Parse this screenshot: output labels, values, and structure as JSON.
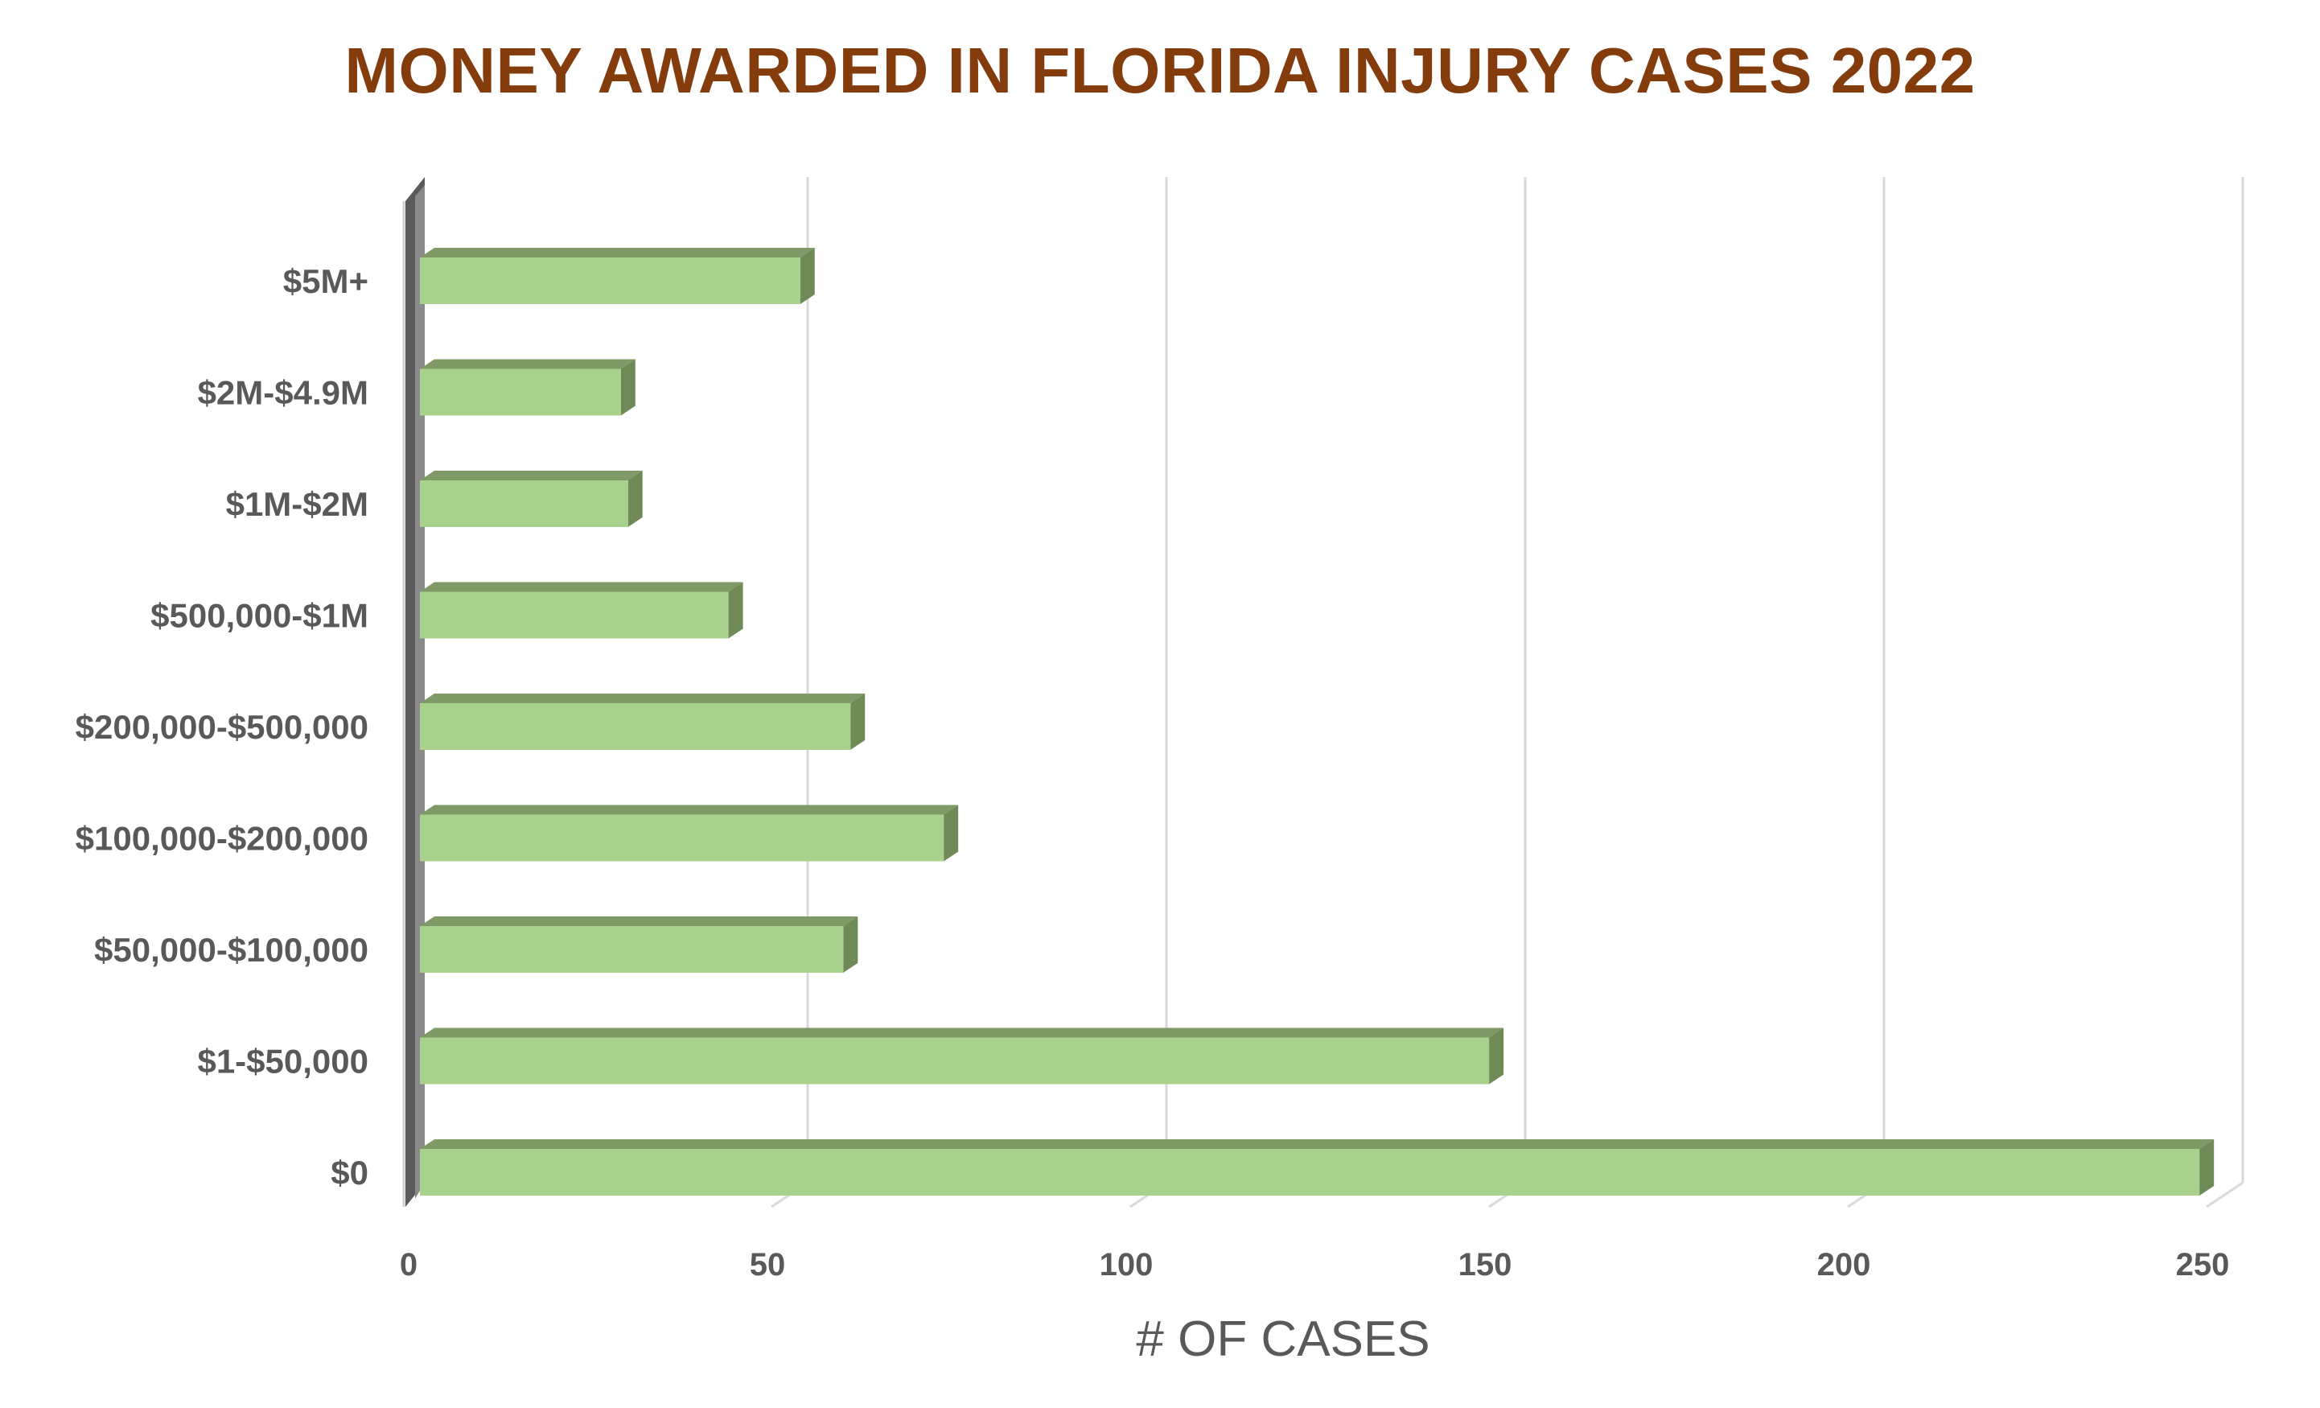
{
  "chart_data": {
    "type": "bar",
    "orientation": "horizontal",
    "title": "MONEY AWARDED IN FLORIDA INJURY CASES 2022",
    "xlabel": "# OF CASES",
    "ylabel": "",
    "categories": [
      "$0",
      "$1-$50,000",
      "$50,000-$100,000",
      "$100,000-$200,000",
      "$200,000-$500,000",
      "$500,000-$1M",
      "$1M-$2M",
      "$2M-$4.9M",
      "$5M+"
    ],
    "values": [
      248,
      149,
      59,
      73,
      60,
      43,
      29,
      28,
      53
    ],
    "xlim": [
      0,
      250
    ],
    "xticks": [
      "0",
      "50",
      "100",
      "150",
      "200",
      "250"
    ],
    "grid": true,
    "legend": "none",
    "style": "3d",
    "colors": {
      "bar_front": "#a9d18e",
      "bar_top": "#7f9a66",
      "bar_side": "#6f8a57",
      "title": "#843c0c",
      "text": "#595959",
      "grid": "#d9d9d9"
    }
  }
}
